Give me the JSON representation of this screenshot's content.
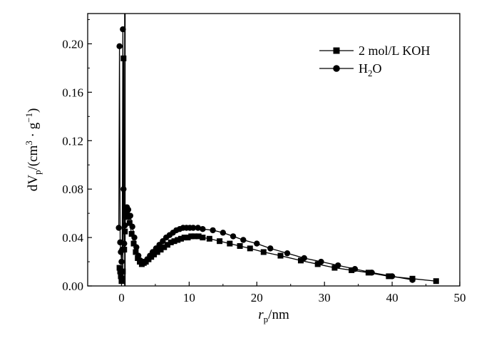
{
  "chart_data": {
    "type": "line",
    "title": "",
    "xlabel": {
      "main": "r",
      "sub": "p",
      "rest": "/nm"
    },
    "ylabel": {
      "pre": "dV",
      "sub": "p",
      "mid": "/(cm",
      "sup1": "3",
      "dot": " · g",
      "sup2": "−1",
      "post": ")"
    },
    "xlim": [
      -5,
      50
    ],
    "ylim": [
      0,
      0.225
    ],
    "xticks": [
      0,
      10,
      20,
      30,
      40,
      50
    ],
    "xtick_labels": [
      "0",
      "10",
      "20",
      "30",
      "40",
      "50"
    ],
    "yticks": [
      0.0,
      0.04,
      0.08,
      0.12,
      0.16,
      0.2
    ],
    "ytick_labels": [
      "0.00",
      "0.04",
      "0.08",
      "0.12",
      "0.16",
      "0.20"
    ],
    "grid": false,
    "legend_position": "top-right",
    "vertical_line_x": 0.5,
    "series": [
      {
        "name": "2 mol/L KOH",
        "marker": "square",
        "color": "#000000",
        "x": [
          -0.3,
          -0.2,
          -0.1,
          0.0,
          0.1,
          0.2,
          0.3,
          0.4,
          0.5,
          0.6,
          0.8,
          1.0,
          1.2,
          1.5,
          1.8,
          2.1,
          2.4,
          2.7,
          3.0,
          3.3,
          3.6,
          4.0,
          4.4,
          4.8,
          5.3,
          5.8,
          6.3,
          6.8,
          7.3,
          7.8,
          8.3,
          8.8,
          9.3,
          9.8,
          10.3,
          10.8,
          11.4,
          12.0,
          13.0,
          14.5,
          16.0,
          17.5,
          19.0,
          21.0,
          23.5,
          26.5,
          29.0,
          31.5,
          34.0,
          36.5,
          39.5,
          43.0,
          46.5
        ],
        "values": [
          0.015,
          0.012,
          0.008,
          0.004,
          0.006,
          0.012,
          0.188,
          0.03,
          0.045,
          0.058,
          0.06,
          0.057,
          0.052,
          0.043,
          0.035,
          0.028,
          0.023,
          0.02,
          0.018,
          0.019,
          0.02,
          0.022,
          0.024,
          0.026,
          0.028,
          0.03,
          0.032,
          0.034,
          0.036,
          0.037,
          0.038,
          0.039,
          0.04,
          0.04,
          0.041,
          0.041,
          0.041,
          0.04,
          0.039,
          0.037,
          0.035,
          0.033,
          0.031,
          0.028,
          0.025,
          0.021,
          0.018,
          0.015,
          0.013,
          0.011,
          0.008,
          0.006,
          0.004
        ]
      },
      {
        "name": "H2O",
        "legend_main": "H",
        "legend_sub": "2",
        "legend_rest": "O",
        "marker": "circle",
        "color": "#000000",
        "x": [
          -0.4,
          -0.3,
          -0.2,
          -0.1,
          0.0,
          0.1,
          0.2,
          0.3,
          0.4,
          0.5,
          0.6,
          0.8,
          1.0,
          1.3,
          1.6,
          1.9,
          2.2,
          2.5,
          2.8,
          3.1,
          3.4,
          3.8,
          4.2,
          4.6,
          5.1,
          5.6,
          6.1,
          6.6,
          7.1,
          7.6,
          8.1,
          8.6,
          9.1,
          9.6,
          10.1,
          10.6,
          11.3,
          12.0,
          13.5,
          15.0,
          16.5,
          18.0,
          20.0,
          22.0,
          24.5,
          27.0,
          29.5,
          32.0,
          34.5,
          37.0,
          40.0,
          43.0
        ],
        "values": [
          0.048,
          0.198,
          0.036,
          0.028,
          0.02,
          0.03,
          0.212,
          0.08,
          0.035,
          0.05,
          0.062,
          0.065,
          0.063,
          0.058,
          0.049,
          0.04,
          0.032,
          0.025,
          0.021,
          0.019,
          0.02,
          0.022,
          0.025,
          0.028,
          0.031,
          0.034,
          0.037,
          0.04,
          0.042,
          0.044,
          0.046,
          0.047,
          0.048,
          0.048,
          0.048,
          0.048,
          0.048,
          0.047,
          0.046,
          0.044,
          0.041,
          0.038,
          0.035,
          0.031,
          0.027,
          0.023,
          0.02,
          0.017,
          0.014,
          0.011,
          0.008,
          0.005
        ]
      }
    ]
  }
}
